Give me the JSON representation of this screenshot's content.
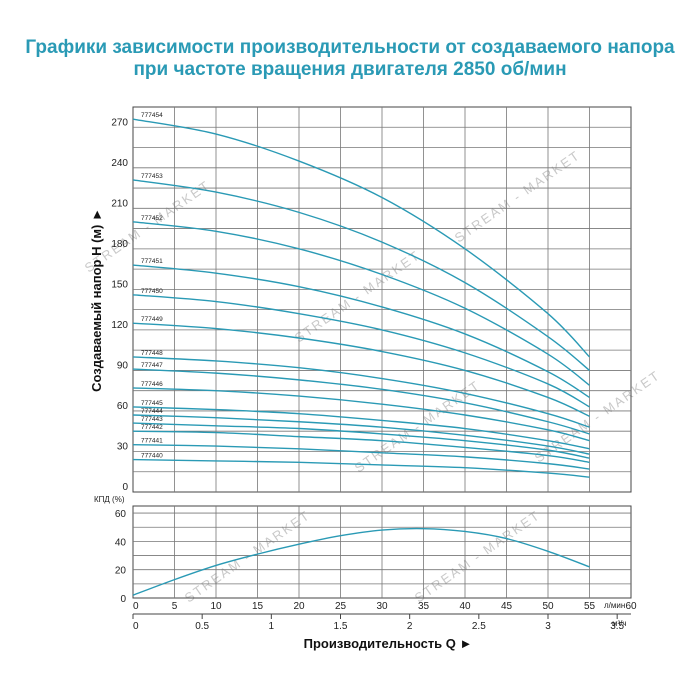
{
  "header": {
    "title_line1": "Графики зависимости производительности от создаваемого напора",
    "title_line2": "при частоте вращения двигателя 2850 об/мин"
  },
  "watermark": "STREAM - MARKET",
  "colors": {
    "title": "#2a9ab5",
    "curve": "#2a9ab5",
    "grid": "#777777"
  },
  "chart_data": [
    {
      "type": "line",
      "ylabel": "Создаваемый напор H (м) ►",
      "xlim": [
        0,
        60
      ],
      "ylim": [
        0,
        285
      ],
      "yticks": [
        0,
        30,
        60,
        90,
        120,
        150,
        180,
        210,
        240,
        270
      ],
      "xticks": [
        0,
        5,
        10,
        15,
        20,
        25,
        30,
        35,
        40,
        45,
        50,
        55,
        60
      ],
      "grid": true,
      "series": [
        {
          "name": "777454",
          "x": [
            0,
            10,
            20,
            30,
            40,
            50,
            55
          ],
          "values": [
            276,
            265,
            245,
            218,
            180,
            132,
            100
          ]
        },
        {
          "name": "777453",
          "x": [
            0,
            10,
            20,
            30,
            40,
            50,
            55
          ],
          "values": [
            231,
            222,
            207,
            185,
            155,
            115,
            90
          ]
        },
        {
          "name": "777452",
          "x": [
            0,
            10,
            20,
            30,
            40,
            50,
            55
          ],
          "values": [
            200,
            193,
            180,
            161,
            136,
            102,
            79
          ]
        },
        {
          "name": "777451",
          "x": [
            0,
            10,
            20,
            30,
            40,
            50,
            55
          ],
          "values": [
            168,
            162,
            152,
            137,
            117,
            89,
            70
          ]
        },
        {
          "name": "777450",
          "x": [
            0,
            10,
            20,
            30,
            40,
            50,
            55
          ],
          "values": [
            146,
            141,
            132,
            120,
            103,
            80,
            63
          ]
        },
        {
          "name": "777449",
          "x": [
            0,
            10,
            20,
            30,
            40,
            50,
            55
          ],
          "values": [
            125,
            121,
            114,
            104,
            90,
            70,
            56
          ]
        },
        {
          "name": "777448",
          "x": [
            0,
            10,
            20,
            30,
            40,
            50,
            55
          ],
          "values": [
            100,
            97,
            92,
            84,
            73,
            58,
            48
          ]
        },
        {
          "name": "777447",
          "x": [
            0,
            10,
            20,
            30,
            40,
            50,
            55
          ],
          "values": [
            91,
            88,
            83,
            76,
            66,
            52,
            43
          ]
        },
        {
          "name": "777446",
          "x": [
            0,
            10,
            20,
            30,
            40,
            50,
            55
          ],
          "values": [
            77,
            75,
            71,
            65,
            57,
            46,
            38
          ]
        },
        {
          "name": "777445",
          "x": [
            0,
            10,
            20,
            30,
            40,
            50,
            55
          ],
          "values": [
            63,
            61,
            58,
            53,
            47,
            38,
            32
          ]
        },
        {
          "name": "777444",
          "x": [
            0,
            10,
            20,
            30,
            40,
            50,
            55
          ],
          "values": [
            57,
            55,
            52,
            48,
            42,
            34,
            28
          ]
        },
        {
          "name": "777443",
          "x": [
            0,
            10,
            20,
            30,
            40,
            50,
            55
          ],
          "values": [
            51,
            49,
            47,
            43,
            38,
            31,
            25
          ]
        },
        {
          "name": "777442",
          "x": [
            0,
            10,
            20,
            30,
            40,
            50,
            55
          ],
          "values": [
            45,
            44,
            41,
            38,
            33,
            27,
            22
          ]
        },
        {
          "name": "777441",
          "x": [
            0,
            10,
            20,
            30,
            40,
            50,
            55
          ],
          "values": [
            35,
            34,
            32,
            29,
            26,
            21,
            17
          ]
        },
        {
          "name": "777440",
          "x": [
            0,
            10,
            20,
            30,
            40,
            50,
            55
          ],
          "values": [
            24,
            23,
            22,
            20,
            18,
            14,
            11
          ]
        }
      ]
    },
    {
      "type": "line",
      "ylabel": "КПД (%)",
      "xlim": [
        0,
        60
      ],
      "ylim": [
        0,
        65
      ],
      "yticks": [
        0,
        20,
        40,
        60
      ],
      "grid": true,
      "series": [
        {
          "x": [
            0,
            5,
            10,
            15,
            20,
            25,
            30,
            35,
            40,
            45,
            50,
            55
          ],
          "values": [
            2,
            13,
            23,
            31,
            38,
            44,
            48,
            49,
            47,
            42,
            33,
            22
          ]
        }
      ]
    }
  ],
  "x_axis": {
    "unit_top": "л/мин",
    "unit_bottom": "м³/ч",
    "top_labels": [
      "0",
      "5",
      "10",
      "15",
      "20",
      "25",
      "30",
      "35",
      "40",
      "45",
      "50",
      "55",
      "60"
    ],
    "bottom_labels": [
      "0",
      "0.5",
      "1",
      "1.5",
      "2",
      "2.5",
      "3",
      "3.5"
    ],
    "bottom_values": [
      0,
      0.5,
      1,
      1.5,
      2,
      2.5,
      3,
      3.5
    ],
    "title": "Производительность Q ►"
  }
}
